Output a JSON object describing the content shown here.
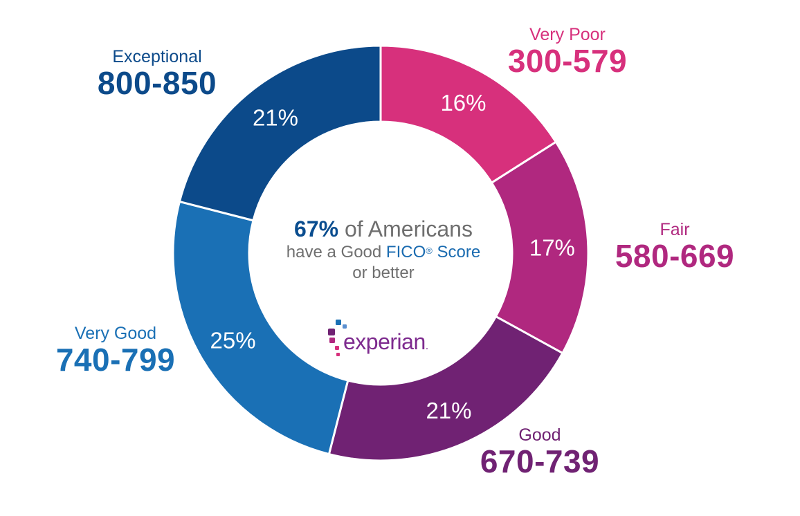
{
  "chart_data": {
    "type": "pie",
    "categories": [
      {
        "name": "Very Poor",
        "range": "300-579",
        "value": 16,
        "label": "16%",
        "color": "#d7307c"
      },
      {
        "name": "Fair",
        "range": "580-669",
        "value": 17,
        "label": "17%",
        "color": "#b0287f"
      },
      {
        "name": "Good",
        "range": "670-739",
        "value": 21,
        "label": "21%",
        "color": "#702273"
      },
      {
        "name": "Very Good",
        "range": "740-799",
        "value": 25,
        "label": "25%",
        "color": "#1a70b5"
      },
      {
        "name": "Exceptional",
        "range": "800-850",
        "value": 21,
        "label": "21%",
        "color": "#0c4a8a"
      }
    ],
    "donut": true
  },
  "center": {
    "pct": "67%",
    "line1_rest": " of Americans",
    "line2_prefix": "have a Good ",
    "fico": "FICO",
    "registered": "®",
    "score": " Score",
    "line3": "or better"
  },
  "logo": {
    "text": "experian",
    "dot": "."
  }
}
